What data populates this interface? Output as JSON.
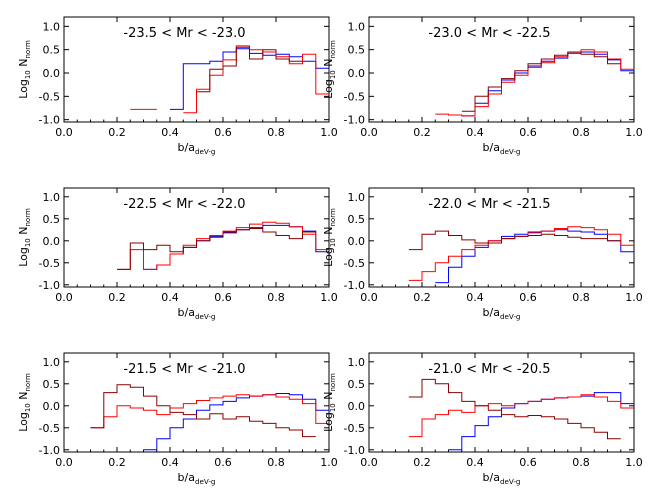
{
  "chart_data": [
    {
      "type": "line",
      "title": "-23.5 < Mr < -23.0",
      "xlabel": "b/a",
      "xlabel_sub": "deV-g",
      "ylabel": "Log",
      "ylabel_sub": "10",
      "ylabel_tail": "N",
      "ylabel_tail_sub": "norm",
      "xlim": [
        0.0,
        1.0
      ],
      "ylim": [
        -1.05,
        1.2
      ],
      "xticks": [
        "0.0",
        "0.2",
        "0.4",
        "0.6",
        "0.8",
        "1.0"
      ],
      "yticks": [
        "-1.0",
        "-0.5",
        "0.0",
        "0.5",
        "1.0"
      ],
      "bin_edges": [
        0.05,
        0.1,
        0.15,
        0.2,
        0.25,
        0.3,
        0.35,
        0.4,
        0.45,
        0.5,
        0.55,
        0.6,
        0.65,
        0.7,
        0.75,
        0.8,
        0.85,
        0.9,
        0.95,
        1.0
      ],
      "series": [
        {
          "color": "#0000ff",
          "values": [
            null,
            null,
            null,
            null,
            null,
            null,
            null,
            -0.78,
            0.2,
            0.2,
            0.25,
            0.45,
            0.52,
            0.42,
            0.38,
            0.4,
            0.35,
            0.25,
            0.1
          ]
        },
        {
          "color": "#ff0000",
          "values": [
            null,
            null,
            null,
            null,
            -0.78,
            -0.78,
            null,
            null,
            -0.85,
            -0.35,
            -0.05,
            0.28,
            0.58,
            0.5,
            0.45,
            0.35,
            0.2,
            0.4,
            -0.45
          ]
        },
        {
          "color": "#8b0000",
          "values": [
            null,
            null,
            null,
            null,
            null,
            null,
            null,
            null,
            null,
            -0.4,
            0.08,
            0.15,
            0.55,
            0.3,
            0.5,
            0.3,
            0.25,
            null,
            null
          ]
        }
      ]
    },
    {
      "type": "line",
      "title": "-23.0 < Mr < -22.5",
      "xlabel": "b/a",
      "xlabel_sub": "deV-g",
      "ylabel": "Log",
      "ylabel_sub": "10",
      "ylabel_tail": "N",
      "ylabel_tail_sub": "norm",
      "xlim": [
        0.0,
        1.0
      ],
      "ylim": [
        -1.05,
        1.2
      ],
      "xticks": [
        "0.0",
        "0.2",
        "0.4",
        "0.6",
        "0.8",
        "1.0"
      ],
      "yticks": [
        "-1.0",
        "-0.5",
        "0.0",
        "0.5",
        "1.0"
      ],
      "bin_edges": [
        0.05,
        0.1,
        0.15,
        0.2,
        0.25,
        0.3,
        0.35,
        0.4,
        0.45,
        0.5,
        0.55,
        0.6,
        0.65,
        0.7,
        0.75,
        0.8,
        0.85,
        0.9,
        0.95,
        1.0
      ],
      "series": [
        {
          "color": "#0000ff",
          "values": [
            null,
            null,
            null,
            null,
            null,
            null,
            -0.92,
            -0.65,
            -0.38,
            -0.15,
            0.0,
            0.15,
            0.25,
            0.32,
            0.42,
            0.45,
            0.4,
            0.28,
            0.05
          ]
        },
        {
          "color": "#ff0000",
          "values": [
            null,
            null,
            null,
            null,
            -0.88,
            -0.9,
            -0.92,
            -0.72,
            -0.45,
            -0.2,
            -0.05,
            0.12,
            0.22,
            0.35,
            0.42,
            0.5,
            0.45,
            0.3,
            0.08
          ]
        },
        {
          "color": "#8b0000",
          "values": [
            null,
            null,
            null,
            null,
            null,
            null,
            -0.82,
            -0.5,
            -0.3,
            -0.12,
            0.05,
            0.2,
            0.3,
            0.38,
            0.45,
            0.4,
            0.35,
            0.2,
            null
          ]
        }
      ]
    },
    {
      "type": "line",
      "title": "-22.5 < Mr < -22.0",
      "xlabel": "b/a",
      "xlabel_sub": "deV-g",
      "ylabel": "Log",
      "ylabel_sub": "10",
      "ylabel_tail": "N",
      "ylabel_tail_sub": "norm",
      "xlim": [
        0.0,
        1.0
      ],
      "ylim": [
        -1.05,
        1.2
      ],
      "xticks": [
        "0.0",
        "0.2",
        "0.4",
        "0.6",
        "0.8",
        "1.0"
      ],
      "yticks": [
        "-1.0",
        "-0.5",
        "0.0",
        "0.5",
        "1.0"
      ],
      "bin_edges": [
        0.05,
        0.1,
        0.15,
        0.2,
        0.25,
        0.3,
        0.35,
        0.4,
        0.45,
        0.5,
        0.55,
        0.6,
        0.65,
        0.7,
        0.75,
        0.8,
        0.85,
        0.9,
        0.95,
        1.0
      ],
      "series": [
        {
          "color": "#0000ff",
          "values": [
            null,
            null,
            null,
            null,
            null,
            -0.65,
            -0.55,
            -0.3,
            -0.15,
            0.0,
            0.1,
            0.2,
            0.25,
            0.3,
            0.35,
            0.35,
            0.32,
            0.22,
            -0.25
          ]
        },
        {
          "color": "#ff0000",
          "values": [
            null,
            null,
            null,
            -0.65,
            -0.2,
            -0.65,
            -0.55,
            -0.3,
            -0.1,
            0.05,
            0.12,
            0.22,
            0.3,
            0.38,
            0.42,
            0.4,
            0.32,
            0.15,
            -0.2
          ]
        },
        {
          "color": "#8b0000",
          "values": [
            null,
            null,
            null,
            -0.65,
            -0.05,
            -0.2,
            -0.1,
            -0.25,
            -0.15,
            0.0,
            0.08,
            0.18,
            0.25,
            0.28,
            0.2,
            0.12,
            0.05,
            0.2,
            null
          ]
        }
      ]
    },
    {
      "type": "line",
      "title": "-22.0 < Mr < -21.5",
      "xlabel": "b/a",
      "xlabel_sub": "deV-g",
      "ylabel": "Log",
      "ylabel_sub": "10",
      "ylabel_tail": "N",
      "ylabel_tail_sub": "norm",
      "xlim": [
        0.0,
        1.0
      ],
      "ylim": [
        -1.05,
        1.2
      ],
      "xticks": [
        "0.0",
        "0.2",
        "0.4",
        "0.6",
        "0.8",
        "1.0"
      ],
      "yticks": [
        "-1.0",
        "-0.5",
        "0.0",
        "0.5",
        "1.0"
      ],
      "bin_edges": [
        0.05,
        0.1,
        0.15,
        0.2,
        0.25,
        0.3,
        0.35,
        0.4,
        0.45,
        0.5,
        0.55,
        0.6,
        0.65,
        0.7,
        0.75,
        0.8,
        0.85,
        0.9,
        0.95,
        1.0
      ],
      "series": [
        {
          "color": "#0000ff",
          "values": [
            null,
            null,
            null,
            null,
            -0.95,
            -0.6,
            -0.35,
            -0.15,
            0.0,
            0.1,
            0.15,
            0.2,
            0.22,
            0.25,
            0.22,
            0.2,
            0.15,
            0.0,
            -0.25
          ]
        },
        {
          "color": "#ff0000",
          "values": [
            null,
            null,
            -0.9,
            -0.7,
            -0.5,
            -0.35,
            -0.2,
            -0.1,
            0.0,
            0.05,
            0.1,
            0.18,
            0.22,
            0.28,
            0.32,
            0.3,
            0.25,
            0.15,
            -0.1
          ]
        },
        {
          "color": "#8b0000",
          "values": [
            null,
            null,
            -0.2,
            0.15,
            0.22,
            0.12,
            0.02,
            -0.05,
            -0.05,
            0.05,
            0.1,
            0.12,
            0.15,
            0.12,
            0.08,
            0.05,
            0.05,
            0.0,
            null
          ]
        }
      ]
    },
    {
      "type": "line",
      "title": "-21.5 < Mr < -21.0",
      "xlabel": "b/a",
      "xlabel_sub": "deV-g",
      "ylabel": "Log",
      "ylabel_sub": "10",
      "ylabel_tail": "N",
      "ylabel_tail_sub": "norm",
      "xlim": [
        0.0,
        1.0
      ],
      "ylim": [
        -1.05,
        1.2
      ],
      "xticks": [
        "0.0",
        "0.2",
        "0.4",
        "0.6",
        "0.8",
        "1.0"
      ],
      "yticks": [
        "-1.0",
        "-0.5",
        "0.0",
        "0.5",
        "1.0"
      ],
      "bin_edges": [
        0.05,
        0.1,
        0.15,
        0.2,
        0.25,
        0.3,
        0.35,
        0.4,
        0.45,
        0.5,
        0.55,
        0.6,
        0.65,
        0.7,
        0.75,
        0.8,
        0.85,
        0.9,
        0.95,
        1.0
      ],
      "series": [
        {
          "color": "#0000ff",
          "values": [
            null,
            null,
            null,
            null,
            null,
            -1.0,
            -0.75,
            -0.5,
            -0.3,
            -0.1,
            0.02,
            0.1,
            0.18,
            0.22,
            0.25,
            0.28,
            0.25,
            0.15,
            -0.1
          ]
        },
        {
          "color": "#ff0000",
          "values": [
            null,
            -0.5,
            -0.25,
            0.0,
            -0.05,
            -0.1,
            -0.2,
            -0.05,
            0.05,
            0.12,
            0.18,
            0.22,
            0.25,
            0.22,
            0.25,
            0.2,
            0.15,
            0.05,
            -0.4
          ]
        },
        {
          "color": "#8b0000",
          "values": [
            null,
            -0.5,
            0.3,
            0.48,
            0.42,
            0.22,
            0.0,
            -0.15,
            -0.2,
            -0.3,
            -0.18,
            -0.3,
            -0.25,
            -0.35,
            -0.4,
            -0.5,
            -0.55,
            -0.7,
            null
          ]
        }
      ]
    },
    {
      "type": "line",
      "title": "-21.0 < Mr < -20.5",
      "xlabel": "b/a",
      "xlabel_sub": "deV-g",
      "ylabel": "Log",
      "ylabel_sub": "10",
      "ylabel_tail": "N",
      "ylabel_tail_sub": "norm",
      "xlim": [
        0.0,
        1.0
      ],
      "ylim": [
        -1.05,
        1.2
      ],
      "xticks": [
        "0.0",
        "0.2",
        "0.4",
        "0.6",
        "0.8",
        "1.0"
      ],
      "yticks": [
        "-1.0",
        "-0.5",
        "0.0",
        "0.5",
        "1.0"
      ],
      "bin_edges": [
        0.05,
        0.1,
        0.15,
        0.2,
        0.25,
        0.3,
        0.35,
        0.4,
        0.45,
        0.5,
        0.55,
        0.6,
        0.65,
        0.7,
        0.75,
        0.8,
        0.85,
        0.9,
        0.95,
        1.0
      ],
      "series": [
        {
          "color": "#0000ff",
          "values": [
            null,
            null,
            null,
            null,
            null,
            -1.0,
            -0.7,
            -0.45,
            -0.25,
            -0.05,
            0.05,
            0.1,
            0.15,
            0.18,
            0.2,
            0.22,
            0.3,
            0.3,
            0.05
          ]
        },
        {
          "color": "#ff0000",
          "values": [
            null,
            null,
            -0.7,
            -0.3,
            -0.2,
            -0.1,
            -0.15,
            0.0,
            0.05,
            0.0,
            0.05,
            0.1,
            0.15,
            0.18,
            0.2,
            0.25,
            0.2,
            0.1,
            -0.05
          ]
        },
        {
          "color": "#8b0000",
          "values": [
            null,
            null,
            0.2,
            0.6,
            0.5,
            0.3,
            0.1,
            0.0,
            -0.1,
            -0.2,
            -0.25,
            -0.22,
            -0.25,
            -0.3,
            -0.4,
            -0.5,
            -0.6,
            -0.75,
            null
          ]
        }
      ]
    }
  ]
}
